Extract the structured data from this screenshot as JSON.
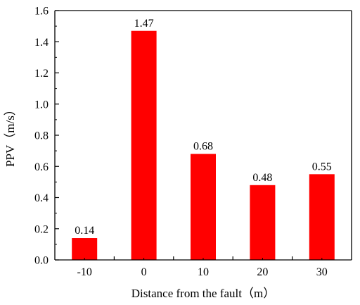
{
  "chart_data": {
    "type": "bar",
    "categories": [
      "-10",
      "0",
      "10",
      "20",
      "30"
    ],
    "values": [
      0.14,
      1.47,
      0.68,
      0.48,
      0.55
    ],
    "data_labels": [
      "0.14",
      "1.47",
      "0.68",
      "0.48",
      "0.55"
    ],
    "title": "",
    "xlabel": "Distance from the fault（m）",
    "ylabel": "PPV（m/s）",
    "ylim": [
      0,
      1.6
    ],
    "yticks": [
      "0.0",
      "0.2",
      "0.4",
      "0.6",
      "0.8",
      "1.0",
      "1.2",
      "1.4",
      "1.6"
    ],
    "grid": false,
    "legend": "none",
    "bar_color": "#ff0000",
    "axis_color": "#000000"
  }
}
